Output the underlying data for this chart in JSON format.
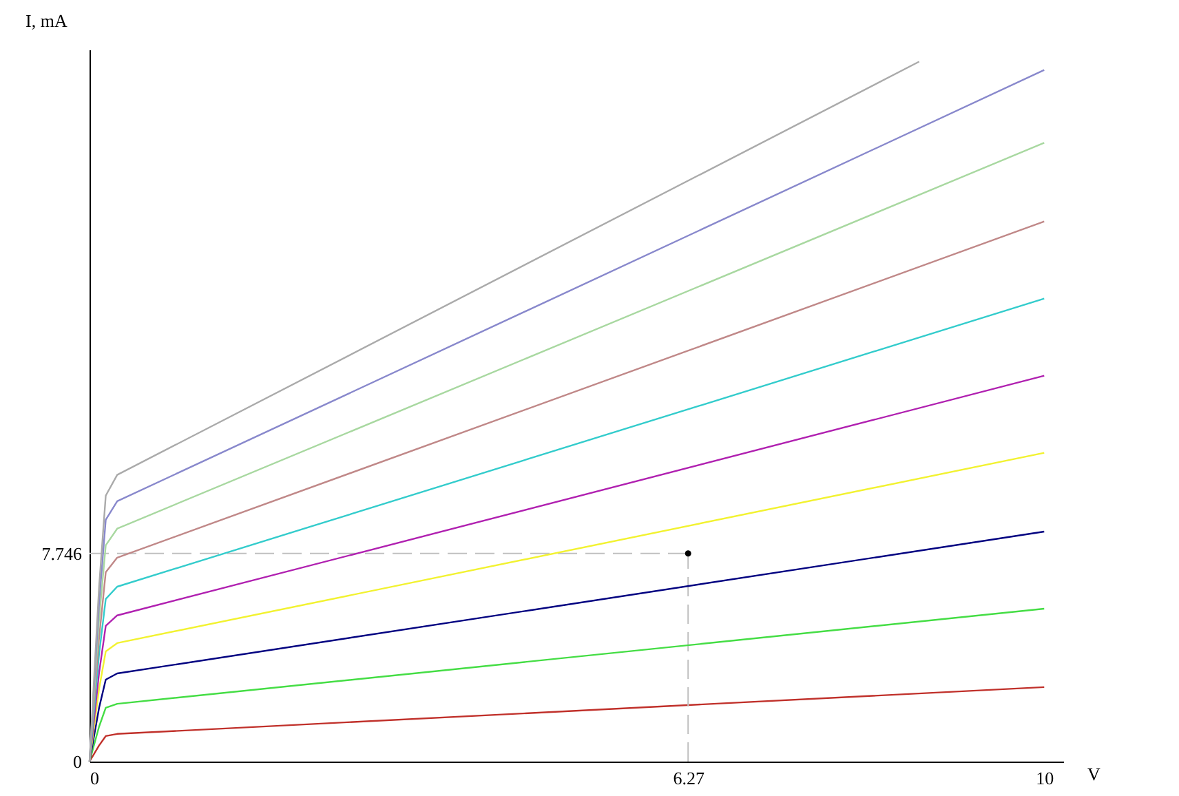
{
  "chart_data": {
    "type": "line",
    "xlabel": "V",
    "ylabel": "I, mA",
    "xlim": [
      0,
      10.2
    ],
    "ylim": [
      0,
      26.5
    ],
    "xticks": [
      0,
      6.27,
      10
    ],
    "yticks": [
      0,
      7.746
    ],
    "marker": "none",
    "line_style": "solid",
    "series": [
      {
        "color": "#c0302a",
        "x": [
          0,
          0.1,
          0.17,
          0.29,
          10
        ],
        "values": [
          0,
          0.6,
          0.95,
          1.03,
          2.77
        ]
      },
      {
        "color": "#44dd44",
        "x": [
          0,
          0.1,
          0.17,
          0.29,
          10
        ],
        "values": [
          0,
          1.3,
          2.0,
          2.15,
          5.69
        ]
      },
      {
        "color": "#000080",
        "x": [
          0,
          0.1,
          0.17,
          0.29,
          10
        ],
        "values": [
          0,
          2.0,
          3.05,
          3.28,
          8.56
        ]
      },
      {
        "color": "#f2f230",
        "x": [
          0,
          0.1,
          0.17,
          0.29,
          10
        ],
        "values": [
          0,
          2.7,
          4.1,
          4.41,
          11.49
        ]
      },
      {
        "color": "#b020b0",
        "x": [
          0,
          0.1,
          0.17,
          0.29,
          10
        ],
        "values": [
          0,
          3.3,
          5.05,
          5.44,
          14.36
        ]
      },
      {
        "color": "#33cccc",
        "x": [
          0,
          0.1,
          0.17,
          0.29,
          10
        ],
        "values": [
          0,
          4.0,
          6.05,
          6.51,
          17.23
        ]
      },
      {
        "color": "#c08888",
        "x": [
          0,
          0.1,
          0.17,
          0.29,
          10
        ],
        "values": [
          0,
          4.6,
          7.05,
          7.59,
          20.1
        ]
      },
      {
        "color": "#a8d8a0",
        "x": [
          0,
          0.1,
          0.17,
          0.29,
          10
        ],
        "values": [
          0,
          5.3,
          8.05,
          8.67,
          23.03
        ]
      },
      {
        "color": "#8888cc",
        "x": [
          0,
          0.1,
          0.17,
          0.29,
          10
        ],
        "values": [
          0,
          5.9,
          9.0,
          9.69,
          25.74
        ]
      },
      {
        "color": "#aaaaaa",
        "x": [
          0,
          0.1,
          0.17,
          0.29,
          8.69
        ],
        "values": [
          0,
          6.5,
          9.9,
          10.67,
          26.05
        ]
      },
      {
        "type": "scatter",
        "color": "#000000",
        "marker": "circle",
        "x": [
          6.27
        ],
        "values": [
          7.746
        ]
      }
    ],
    "ref_lines": [
      {
        "axis": "x",
        "value": 6.27,
        "color": "#c0c0c0",
        "line_style": "dashed"
      },
      {
        "axis": "y",
        "value": 7.746,
        "color": "#c0c0c0",
        "line_style": "dashed"
      }
    ]
  }
}
